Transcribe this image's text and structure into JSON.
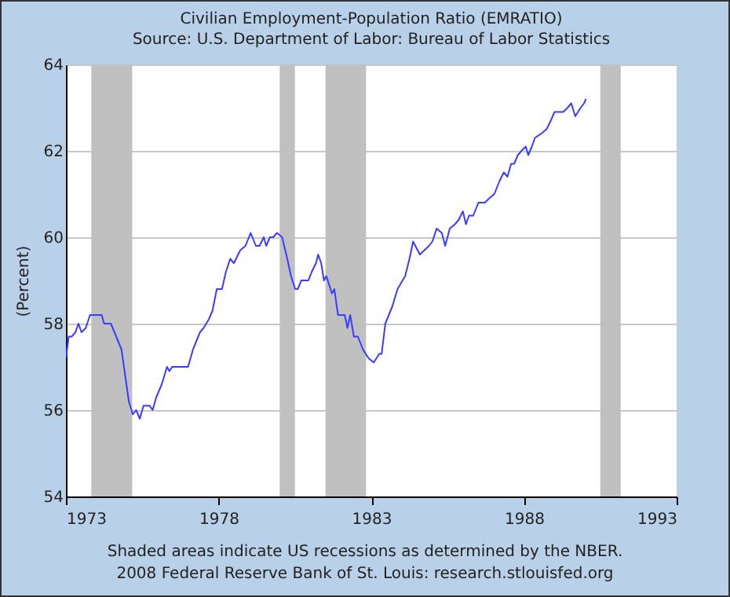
{
  "chart_data": {
    "type": "line",
    "title": "Civilian Employment-Population Ratio (EMRATIO)",
    "subtitle": "Source: U.S. Department of Labor: Bureau of Labor Statistics",
    "ylabel": "(Percent)",
    "annotations": [
      "Shaded areas indicate US recessions as determined by the NBER.",
      "2008 Federal Reserve Bank of St. Louis: research.stlouisfed.org"
    ],
    "x": [
      1973.0,
      1973.09,
      1973.19,
      1973.31,
      1973.41,
      1973.51,
      1973.65,
      1973.79,
      1974.17,
      1974.25,
      1974.47,
      1974.59,
      1974.82,
      1974.94,
      1975.06,
      1975.19,
      1975.3,
      1975.42,
      1975.54,
      1975.74,
      1975.84,
      1975.96,
      1976.14,
      1976.31,
      1976.39,
      1976.48,
      1976.74,
      1977.0,
      1977.16,
      1977.39,
      1977.51,
      1977.68,
      1977.8,
      1977.94,
      1978.11,
      1978.24,
      1978.38,
      1978.5,
      1978.71,
      1978.88,
      1979.05,
      1979.22,
      1979.34,
      1979.48,
      1979.56,
      1979.68,
      1979.79,
      1979.91,
      1980.08,
      1980.25,
      1980.37,
      1980.51,
      1980.59,
      1980.71,
      1980.94,
      1981.05,
      1981.19,
      1981.26,
      1981.36,
      1981.45,
      1981.53,
      1981.71,
      1981.79,
      1981.91,
      1982.13,
      1982.22,
      1982.31,
      1982.43,
      1982.56,
      1982.73,
      1982.91,
      1983.08,
      1983.26,
      1983.34,
      1983.46,
      1983.69,
      1983.86,
      1984.11,
      1984.25,
      1984.37,
      1984.59,
      1984.89,
      1985.0,
      1985.14,
      1985.31,
      1985.42,
      1985.57,
      1985.74,
      1985.86,
      1986.0,
      1986.1,
      1986.2,
      1986.34,
      1986.51,
      1986.72,
      1986.86,
      1987.03,
      1987.2,
      1987.34,
      1987.46,
      1987.58,
      1987.68,
      1987.8,
      1987.92,
      1988.06,
      1988.14,
      1988.26,
      1988.36,
      1988.57,
      1988.74,
      1988.88,
      1989.0,
      1989.29,
      1989.43,
      1989.55,
      1989.68,
      1989.86,
      1989.97,
      1990.03
    ],
    "values": [
      57.2,
      57.7,
      57.7,
      57.8,
      58.0,
      57.8,
      57.9,
      58.2,
      58.2,
      58.0,
      58.0,
      57.8,
      57.4,
      56.8,
      56.2,
      55.9,
      56.0,
      55.8,
      56.1,
      56.1,
      56.0,
      56.3,
      56.6,
      57.0,
      56.9,
      57.0,
      57.0,
      57.0,
      57.4,
      57.8,
      57.9,
      58.1,
      58.3,
      58.8,
      58.8,
      59.2,
      59.5,
      59.4,
      59.7,
      59.8,
      60.1,
      59.8,
      59.8,
      60.0,
      59.8,
      60.0,
      60.0,
      60.1,
      60.0,
      59.5,
      59.1,
      58.8,
      58.8,
      59.0,
      59.0,
      59.2,
      59.4,
      59.6,
      59.4,
      59.0,
      59.1,
      58.7,
      58.8,
      58.2,
      58.2,
      57.9,
      58.2,
      57.7,
      57.7,
      57.4,
      57.2,
      57.1,
      57.3,
      57.3,
      58.0,
      58.4,
      58.8,
      59.1,
      59.5,
      59.9,
      59.6,
      59.8,
      59.9,
      60.2,
      60.1,
      59.8,
      60.2,
      60.3,
      60.4,
      60.6,
      60.3,
      60.5,
      60.5,
      60.8,
      60.8,
      60.9,
      61.0,
      61.3,
      61.5,
      61.4,
      61.7,
      61.7,
      61.9,
      62.0,
      62.1,
      61.9,
      62.1,
      62.3,
      62.4,
      62.5,
      62.7,
      62.9,
      62.9,
      63.0,
      63.1,
      62.8,
      63.0,
      63.1,
      63.2
    ],
    "color": "#3b3bff",
    "xlim": [
      1973,
      1993
    ],
    "xticks": [
      1973,
      1978,
      1983,
      1988,
      1993
    ],
    "ylim": [
      54,
      64
    ],
    "yticks": [
      54,
      56,
      58,
      60,
      62,
      64
    ],
    "grid": "y",
    "bands": [
      {
        "axis": "x",
        "from": 1973.83,
        "to": 1975.17,
        "color": "#c0c0c0"
      },
      {
        "axis": "x",
        "from": 1980.0,
        "to": 1980.5,
        "color": "#c0c0c0"
      },
      {
        "axis": "x",
        "from": 1981.5,
        "to": 1982.83,
        "color": "#c0c0c0"
      },
      {
        "axis": "x",
        "from": 1990.5,
        "to": 1991.17,
        "color": "#c0c0c0"
      }
    ]
  }
}
